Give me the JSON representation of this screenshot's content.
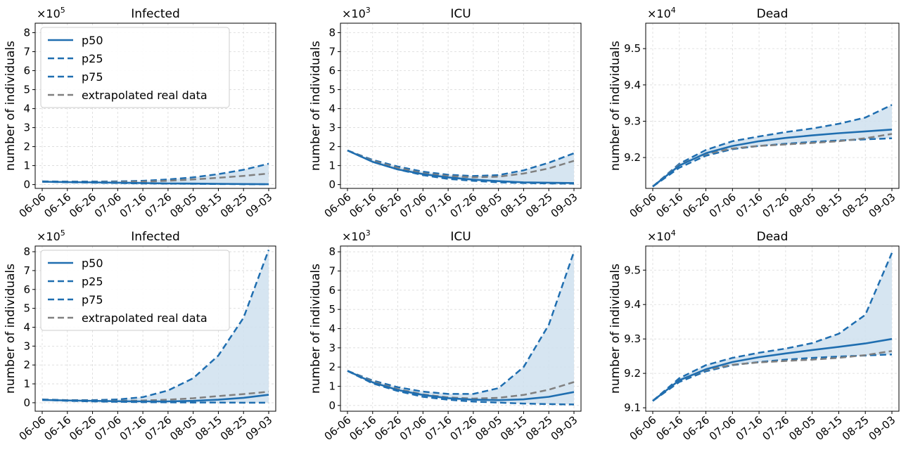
{
  "figure": {
    "colors": {
      "p50": "#1f6eb0",
      "quantile": "#1f6eb0",
      "band": "#cfe0ee",
      "real": "#808080",
      "grid": "#d9d9d9"
    },
    "legend": [
      "p50",
      "p25",
      "p75",
      "extrapolated real data"
    ],
    "ylabel": "number of individuals",
    "xticks": [
      "06-06",
      "06-16",
      "06-26",
      "07-06",
      "07-16",
      "07-26",
      "08-05",
      "08-15",
      "08-25",
      "09-03"
    ]
  },
  "chart_data": [
    {
      "type": "line",
      "row": 0,
      "col": 0,
      "title": "Infected",
      "exponent": "5",
      "ylabel": "number of individuals",
      "ylim": [
        -0.2,
        8.5
      ],
      "yticks": [
        "0",
        "1",
        "2",
        "3",
        "4",
        "5",
        "6",
        "7",
        "8"
      ],
      "x": [
        "06-06",
        "06-16",
        "06-26",
        "07-06",
        "07-16",
        "07-26",
        "08-05",
        "08-15",
        "08-25",
        "09-03"
      ],
      "legend": true,
      "legend_position": "upper-left",
      "series": [
        {
          "name": "p50",
          "values": [
            0.15,
            0.13,
            0.12,
            0.1,
            0.08,
            0.06,
            0.05,
            0.04,
            0.03,
            0.02
          ]
        },
        {
          "name": "p25",
          "values": [
            0.15,
            0.12,
            0.1,
            0.08,
            0.06,
            0.05,
            0.04,
            0.03,
            0.02,
            0.02
          ]
        },
        {
          "name": "p75",
          "values": [
            0.17,
            0.16,
            0.16,
            0.17,
            0.2,
            0.27,
            0.38,
            0.55,
            0.78,
            1.1
          ]
        },
        {
          "name": "extrapolated real data",
          "values": [
            0.15,
            0.14,
            0.13,
            0.14,
            0.16,
            0.2,
            0.27,
            0.36,
            0.46,
            0.58
          ]
        }
      ]
    },
    {
      "type": "line",
      "row": 0,
      "col": 1,
      "title": "ICU",
      "exponent": "3",
      "ylabel": "number of individuals",
      "ylim": [
        -0.2,
        8.5
      ],
      "yticks": [
        "0",
        "1",
        "2",
        "3",
        "4",
        "5",
        "6",
        "7",
        "8"
      ],
      "x": [
        "06-06",
        "06-16",
        "06-26",
        "07-06",
        "07-16",
        "07-26",
        "08-05",
        "08-15",
        "08-25",
        "09-03"
      ],
      "legend": false,
      "series": [
        {
          "name": "p50",
          "values": [
            1.8,
            1.2,
            0.8,
            0.55,
            0.38,
            0.26,
            0.18,
            0.12,
            0.1,
            0.08
          ]
        },
        {
          "name": "p25",
          "values": [
            1.8,
            1.2,
            0.8,
            0.5,
            0.3,
            0.2,
            0.12,
            0.08,
            0.06,
            0.05
          ]
        },
        {
          "name": "p75",
          "values": [
            1.8,
            1.3,
            0.95,
            0.68,
            0.52,
            0.45,
            0.5,
            0.75,
            1.15,
            1.65
          ]
        },
        {
          "name": "extrapolated real data",
          "values": [
            1.8,
            1.25,
            0.88,
            0.6,
            0.45,
            0.38,
            0.42,
            0.58,
            0.85,
            1.25
          ]
        }
      ]
    },
    {
      "type": "line",
      "row": 0,
      "col": 2,
      "title": "Dead",
      "exponent": "4",
      "ylabel": "number of individuals",
      "ylim": [
        9.115,
        9.57
      ],
      "yticks": [
        "9.2",
        "9.3",
        "9.4",
        "9.5"
      ],
      "x": [
        "06-06",
        "06-16",
        "06-26",
        "07-06",
        "07-16",
        "07-26",
        "08-05",
        "08-15",
        "08-25",
        "09-03"
      ],
      "legend": false,
      "series": [
        {
          "name": "p50",
          "values": [
            9.12,
            9.178,
            9.212,
            9.232,
            9.245,
            9.254,
            9.261,
            9.267,
            9.272,
            9.277
          ]
        },
        {
          "name": "p25",
          "values": [
            9.12,
            9.172,
            9.205,
            9.223,
            9.232,
            9.238,
            9.243,
            9.247,
            9.25,
            9.253
          ]
        },
        {
          "name": "p75",
          "values": [
            9.12,
            9.183,
            9.221,
            9.245,
            9.258,
            9.27,
            9.28,
            9.293,
            9.31,
            9.345
          ]
        },
        {
          "name": "extrapolated real data",
          "values": [
            9.12,
            9.18,
            9.21,
            9.225,
            9.232,
            9.236,
            9.24,
            9.245,
            9.253,
            9.265
          ]
        }
      ]
    },
    {
      "type": "line",
      "row": 1,
      "col": 0,
      "title": "Infected",
      "exponent": "5",
      "ylabel": "number of individuals",
      "ylim": [
        -0.45,
        8.3
      ],
      "yticks": [
        "0",
        "1",
        "2",
        "3",
        "4",
        "5",
        "6",
        "7",
        "8"
      ],
      "x": [
        "06-06",
        "06-16",
        "06-26",
        "07-06",
        "07-16",
        "07-26",
        "08-05",
        "08-15",
        "08-25",
        "09-03"
      ],
      "legend": true,
      "legend_position": "upper-left",
      "series": [
        {
          "name": "p50",
          "values": [
            0.15,
            0.12,
            0.1,
            0.08,
            0.07,
            0.07,
            0.1,
            0.16,
            0.26,
            0.42
          ]
        },
        {
          "name": "p25",
          "values": [
            0.15,
            0.1,
            0.07,
            0.05,
            0.03,
            0.02,
            0.01,
            0.01,
            0.0,
            0.0
          ]
        },
        {
          "name": "p75",
          "values": [
            0.17,
            0.14,
            0.14,
            0.17,
            0.3,
            0.65,
            1.3,
            2.5,
            4.5,
            8.1
          ]
        },
        {
          "name": "extrapolated real data",
          "values": [
            0.15,
            0.13,
            0.11,
            0.1,
            0.12,
            0.16,
            0.24,
            0.35,
            0.46,
            0.58
          ]
        }
      ]
    },
    {
      "type": "line",
      "row": 1,
      "col": 1,
      "title": "ICU",
      "exponent": "3",
      "ylabel": "number of individuals",
      "ylim": [
        -0.3,
        8.3
      ],
      "yticks": [
        "0",
        "1",
        "2",
        "3",
        "4",
        "5",
        "6",
        "7",
        "8"
      ],
      "x": [
        "06-06",
        "06-16",
        "06-26",
        "07-06",
        "07-16",
        "07-26",
        "08-05",
        "08-15",
        "08-25",
        "09-03"
      ],
      "legend": false,
      "series": [
        {
          "name": "p50",
          "values": [
            1.8,
            1.2,
            0.8,
            0.55,
            0.38,
            0.3,
            0.28,
            0.32,
            0.45,
            0.7
          ]
        },
        {
          "name": "p25",
          "values": [
            1.8,
            1.15,
            0.75,
            0.45,
            0.3,
            0.2,
            0.15,
            0.1,
            0.07,
            0.05
          ]
        },
        {
          "name": "p75",
          "values": [
            1.8,
            1.3,
            0.95,
            0.72,
            0.6,
            0.6,
            0.9,
            2.0,
            4.2,
            8.0
          ]
        },
        {
          "name": "extrapolated real data",
          "values": [
            1.8,
            1.25,
            0.85,
            0.58,
            0.42,
            0.36,
            0.4,
            0.55,
            0.82,
            1.22
          ]
        }
      ]
    },
    {
      "type": "line",
      "row": 1,
      "col": 2,
      "title": "Dead",
      "exponent": "4",
      "ylabel": "number of individuals",
      "ylim": [
        9.09,
        9.57
      ],
      "yticks": [
        "9.1",
        "9.2",
        "9.3",
        "9.4",
        "9.5"
      ],
      "x": [
        "06-06",
        "06-16",
        "06-26",
        "07-06",
        "07-16",
        "07-26",
        "08-05",
        "08-15",
        "08-25",
        "09-03"
      ],
      "legend": false,
      "series": [
        {
          "name": "p50",
          "values": [
            9.12,
            9.18,
            9.212,
            9.233,
            9.247,
            9.258,
            9.268,
            9.277,
            9.287,
            9.3
          ]
        },
        {
          "name": "p25",
          "values": [
            9.12,
            9.175,
            9.206,
            9.224,
            9.233,
            9.24,
            9.245,
            9.249,
            9.252,
            9.255
          ]
        },
        {
          "name": "p75",
          "values": [
            9.12,
            9.186,
            9.224,
            9.245,
            9.26,
            9.272,
            9.288,
            9.315,
            9.37,
            9.55
          ]
        },
        {
          "name": "extrapolated real data",
          "values": [
            9.12,
            9.18,
            9.21,
            9.225,
            9.232,
            9.236,
            9.24,
            9.245,
            9.253,
            9.265
          ]
        }
      ]
    }
  ]
}
